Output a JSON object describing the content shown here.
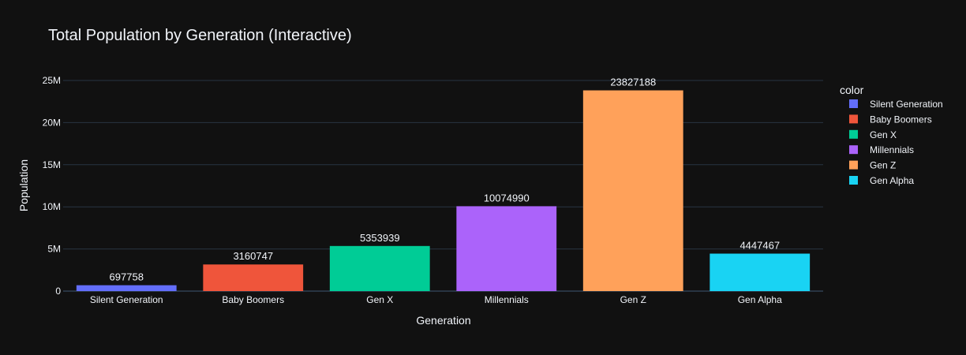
{
  "chart_data": {
    "type": "bar",
    "title": "Total Population by Generation (Interactive)",
    "xlabel": "Generation",
    "ylabel": "Population",
    "categories": [
      "Silent Generation",
      "Baby Boomers",
      "Gen X",
      "Millennials",
      "Gen Z",
      "Gen Alpha"
    ],
    "values": [
      697758,
      3160747,
      5353939,
      10074990,
      23827188,
      4447467
    ],
    "bar_labels": [
      "697758",
      "3160747",
      "5353939",
      "10074990",
      "23827188",
      "4447467"
    ],
    "colors": [
      "#636efa",
      "#EF553B",
      "#00cc96",
      "#ab63fa",
      "#FFA15A",
      "#19d3f3"
    ],
    "ylim": [
      0,
      26500000
    ],
    "yticks": [
      0,
      5000000,
      10000000,
      15000000,
      20000000,
      25000000
    ],
    "ytick_labels": [
      "0",
      "5M",
      "10M",
      "15M",
      "20M",
      "25M"
    ],
    "grid": true,
    "legend": {
      "title": "color",
      "placement": "right",
      "entries": [
        "Silent Generation",
        "Baby Boomers",
        "Gen X",
        "Millennials",
        "Gen Z",
        "Gen Alpha"
      ]
    },
    "colors_theme": {
      "background": "#111111",
      "grid": "#283442",
      "text": "#f2f5fa"
    }
  }
}
